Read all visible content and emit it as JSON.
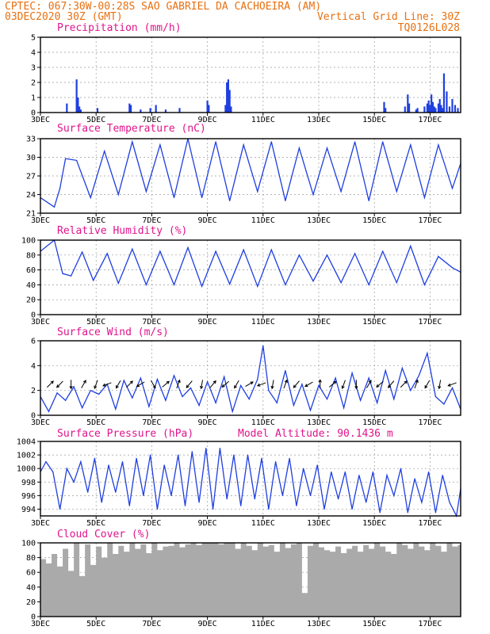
{
  "header": {
    "line1_left": "CPTEC:   067:30W-00:28S  SAO GABRIEL DA CACHOEIRA (AM)",
    "line2_left": "03DEC2020 30Z (GMT)",
    "line2_right": "Vertical Grid Line: 30Z",
    "line3_right": "TQ0126L028"
  },
  "colors": {
    "header": "#e87010",
    "panel_title": "#e0148c",
    "series": "#1f3fe0",
    "cloud_fill": "#aaaaaa"
  },
  "chart_data": [
    {
      "type": "bar",
      "title": "Precipitation (mm/h)",
      "ylim": [
        0,
        5
      ],
      "yticks": [
        "0",
        "1",
        "2",
        "3",
        "4",
        "5"
      ],
      "x_tick_labels": [
        "3DEC",
        "5DEC",
        "7DEC",
        "9DEC",
        "11DEC",
        "13DEC",
        "15DEC",
        "17DEC"
      ],
      "x_tick_days": [
        0,
        2,
        4,
        6,
        8,
        10,
        12,
        14
      ],
      "x_range_days": [
        0,
        15.1
      ],
      "grid": true,
      "x": [
        0.95,
        1.3,
        1.35,
        1.4,
        1.45,
        2.05,
        3.2,
        3.25,
        3.6,
        3.95,
        4.15,
        4.5,
        5.0,
        6.0,
        6.05,
        6.65,
        6.7,
        6.75,
        6.8,
        6.85,
        12.35,
        12.4,
        13.1,
        13.2,
        13.25,
        13.5,
        13.55,
        13.8,
        13.9,
        13.95,
        14.0,
        14.05,
        14.1,
        14.15,
        14.2,
        14.3,
        14.35,
        14.4,
        14.45,
        14.5,
        14.6,
        14.7,
        14.8,
        14.9,
        15.0
      ],
      "values": [
        0.6,
        2.2,
        1.0,
        0.4,
        0.2,
        0.3,
        0.6,
        0.5,
        0.2,
        0.3,
        0.5,
        0.2,
        0.3,
        0.8,
        0.5,
        0.5,
        2.0,
        2.2,
        1.5,
        0.4,
        0.7,
        0.3,
        0.4,
        1.2,
        0.6,
        0.2,
        0.3,
        0.4,
        0.6,
        0.8,
        0.5,
        1.2,
        0.7,
        0.4,
        0.3,
        0.6,
        0.9,
        0.5,
        0.3,
        2.6,
        1.4,
        0.4,
        0.9,
        0.5,
        0.3
      ]
    },
    {
      "type": "line",
      "title": "Surface Temperature (nC)",
      "ylim": [
        21,
        33
      ],
      "yticks": [
        "21",
        "24",
        "27",
        "30",
        "33"
      ],
      "x_tick_labels": [
        "3DEC",
        "5DEC",
        "7DEC",
        "9DEC",
        "11DEC",
        "13DEC",
        "15DEC",
        "17DEC"
      ],
      "x_tick_days": [
        0,
        2,
        4,
        6,
        8,
        10,
        12,
        14
      ],
      "x_range_days": [
        0,
        15.1
      ],
      "grid": true,
      "x": [
        0.0,
        0.5,
        0.7,
        0.9,
        1.3,
        1.8,
        2.3,
        2.8,
        3.3,
        3.8,
        4.3,
        4.8,
        5.3,
        5.8,
        6.3,
        6.8,
        7.3,
        7.8,
        8.3,
        8.8,
        9.3,
        9.8,
        10.3,
        10.8,
        11.3,
        11.8,
        12.3,
        12.8,
        13.3,
        13.8,
        14.3,
        14.8,
        15.1
      ],
      "values": [
        23.5,
        22.0,
        25.0,
        29.8,
        29.5,
        23.5,
        31.0,
        24.0,
        32.5,
        24.5,
        32.0,
        23.5,
        33.0,
        23.5,
        32.5,
        23.0,
        32.0,
        24.5,
        32.5,
        23.0,
        31.5,
        24.0,
        31.5,
        24.5,
        32.5,
        23.0,
        32.5,
        24.5,
        32.0,
        23.5,
        32.0,
        25.0,
        29.0
      ]
    },
    {
      "type": "line",
      "title": "Relative Humidity (%)",
      "ylim": [
        0,
        100
      ],
      "yticks": [
        "0",
        "20",
        "40",
        "60",
        "80",
        "100"
      ],
      "x_tick_labels": [
        "3DEC",
        "5DEC",
        "7DEC",
        "9DEC",
        "11DEC",
        "13DEC",
        "15DEC",
        "17DEC"
      ],
      "x_tick_days": [
        0,
        2,
        4,
        6,
        8,
        10,
        12,
        14
      ],
      "x_range_days": [
        0,
        15.1
      ],
      "grid": true,
      "x": [
        0.0,
        0.5,
        0.8,
        1.1,
        1.5,
        1.9,
        2.4,
        2.8,
        3.3,
        3.8,
        4.3,
        4.8,
        5.3,
        5.8,
        6.3,
        6.8,
        7.3,
        7.8,
        8.3,
        8.8,
        9.3,
        9.8,
        10.3,
        10.8,
        11.3,
        11.8,
        12.3,
        12.8,
        13.3,
        13.8,
        14.3,
        14.8,
        15.1
      ],
      "values": [
        85,
        100,
        55,
        52,
        84,
        46,
        82,
        42,
        88,
        40,
        85,
        40,
        90,
        38,
        85,
        41,
        87,
        38,
        87,
        40,
        80,
        45,
        80,
        43,
        82,
        40,
        85,
        43,
        92,
        40,
        78,
        63,
        57
      ]
    },
    {
      "type": "line",
      "title": "Surface Wind (m/s)",
      "ylim": [
        0,
        6
      ],
      "yticks": [
        "0",
        "2",
        "4",
        "6"
      ],
      "x_tick_labels": [
        "3DEC",
        "5DEC",
        "7DEC",
        "9DEC",
        "11DEC",
        "13DEC",
        "15DEC",
        "17DEC"
      ],
      "x_tick_days": [
        0,
        2,
        4,
        6,
        8,
        10,
        12,
        14
      ],
      "x_range_days": [
        0,
        15.1
      ],
      "grid": true,
      "x": [
        0.0,
        0.3,
        0.6,
        0.9,
        1.2,
        1.5,
        1.8,
        2.1,
        2.4,
        2.7,
        3.0,
        3.3,
        3.6,
        3.9,
        4.2,
        4.5,
        4.8,
        5.1,
        5.4,
        5.7,
        6.0,
        6.3,
        6.6,
        6.9,
        7.2,
        7.5,
        7.8,
        8.0,
        8.2,
        8.5,
        8.8,
        9.1,
        9.4,
        9.7,
        10.0,
        10.3,
        10.6,
        10.9,
        11.2,
        11.5,
        11.8,
        12.1,
        12.4,
        12.7,
        13.0,
        13.3,
        13.6,
        13.9,
        14.2,
        14.5,
        14.8,
        15.1
      ],
      "values": [
        1.5,
        0.3,
        1.8,
        1.2,
        2.3,
        0.6,
        2.0,
        1.7,
        2.5,
        0.5,
        2.8,
        1.4,
        3.0,
        0.7,
        2.9,
        1.2,
        3.2,
        1.5,
        2.2,
        0.8,
        2.7,
        1.0,
        3.1,
        0.3,
        2.4,
        1.3,
        2.9,
        5.6,
        2.0,
        1.0,
        3.6,
        0.8,
        2.5,
        0.4,
        2.4,
        1.3,
        3.0,
        0.6,
        3.4,
        1.2,
        3.0,
        1.0,
        3.6,
        1.3,
        3.8,
        2.0,
        3.2,
        5.0,
        1.5,
        0.9,
        2.2,
        0.5
      ]
    },
    {
      "type": "line",
      "title": "Surface Pressure (hPa)",
      "annotation": "Model Altitude: 90.1436  m",
      "ylim": [
        993,
        1004
      ],
      "yticks": [
        "994",
        "996",
        "998",
        "1000",
        "1002",
        "1004"
      ],
      "x_tick_labels": [
        "3DEC",
        "5DEC",
        "7DEC",
        "9DEC",
        "11DEC",
        "13DEC",
        "15DEC",
        "17DEC"
      ],
      "x_tick_days": [
        0,
        2,
        4,
        6,
        8,
        10,
        12,
        14
      ],
      "x_range_days": [
        0,
        15.1
      ],
      "grid": true,
      "x": [
        0.0,
        0.2,
        0.45,
        0.7,
        0.95,
        1.2,
        1.45,
        1.7,
        1.95,
        2.2,
        2.45,
        2.7,
        2.95,
        3.2,
        3.45,
        3.7,
        3.95,
        4.2,
        4.45,
        4.7,
        4.95,
        5.2,
        5.45,
        5.7,
        5.95,
        6.2,
        6.45,
        6.7,
        6.95,
        7.2,
        7.45,
        7.7,
        7.95,
        8.2,
        8.45,
        8.7,
        8.95,
        9.2,
        9.45,
        9.7,
        9.95,
        10.2,
        10.45,
        10.7,
        10.95,
        11.2,
        11.45,
        11.7,
        11.95,
        12.2,
        12.45,
        12.7,
        12.95,
        13.2,
        13.45,
        13.7,
        13.95,
        14.2,
        14.45,
        14.7,
        14.95,
        15.1
      ],
      "values": [
        999.5,
        1001.0,
        999.5,
        994.0,
        1000.0,
        998.0,
        1001.0,
        996.5,
        1001.5,
        995.0,
        1000.5,
        996.5,
        1001.0,
        994.5,
        1001.5,
        996.0,
        1002.0,
        994.0,
        1000.5,
        996.0,
        1002.0,
        994.5,
        1002.5,
        995.0,
        1003.0,
        994.0,
        1003.0,
        995.5,
        1002.0,
        994.5,
        1002.0,
        995.5,
        1001.5,
        994.0,
        1001.0,
        996.0,
        1001.5,
        994.5,
        1000.0,
        996.0,
        1000.5,
        994.0,
        999.5,
        995.5,
        999.5,
        994.0,
        999.0,
        995.0,
        999.5,
        993.5,
        999.0,
        996.0,
        1000.0,
        993.5,
        998.5,
        995.0,
        999.5,
        993.5,
        999.0,
        995.0,
        993.0,
        997.0
      ]
    },
    {
      "type": "area",
      "title": "Cloud Cover (%)",
      "ylim": [
        0,
        100
      ],
      "yticks": [
        "0",
        "20",
        "40",
        "60",
        "80",
        "100"
      ],
      "x_tick_labels": [
        "3DEC",
        "5DEC",
        "7DEC",
        "9DEC",
        "11DEC",
        "13DEC",
        "15DEC",
        "17DEC"
      ],
      "x_tick_days": [
        0,
        2,
        4,
        6,
        8,
        10,
        12,
        14
      ],
      "x_range_days": [
        0,
        15.1
      ],
      "grid": true,
      "x": [
        0.0,
        0.2,
        0.4,
        0.6,
        0.8,
        1.0,
        1.2,
        1.4,
        1.6,
        1.8,
        2.0,
        2.2,
        2.4,
        2.6,
        2.8,
        3.0,
        3.2,
        3.4,
        3.6,
        3.8,
        4.0,
        4.2,
        4.4,
        4.6,
        4.8,
        5.0,
        5.2,
        5.4,
        5.6,
        5.8,
        6.0,
        6.2,
        6.4,
        6.6,
        6.8,
        7.0,
        7.2,
        7.4,
        7.6,
        7.8,
        8.0,
        8.2,
        8.4,
        8.6,
        8.8,
        9.0,
        9.2,
        9.4,
        9.6,
        9.8,
        10.0,
        10.2,
        10.4,
        10.6,
        10.8,
        11.0,
        11.2,
        11.4,
        11.6,
        11.8,
        12.0,
        12.2,
        12.4,
        12.6,
        12.8,
        13.0,
        13.2,
        13.4,
        13.6,
        13.8,
        14.0,
        14.2,
        14.4,
        14.6,
        14.8,
        15.0
      ],
      "values": [
        78,
        72,
        85,
        68,
        92,
        62,
        100,
        55,
        98,
        70,
        95,
        80,
        100,
        85,
        96,
        88,
        100,
        92,
        98,
        86,
        100,
        90,
        95,
        96,
        100,
        94,
        98,
        100,
        97,
        100,
        100,
        100,
        98,
        100,
        100,
        92,
        100,
        96,
        90,
        100,
        95,
        97,
        88,
        100,
        93,
        98,
        100,
        32,
        96,
        100,
        94,
        90,
        88,
        95,
        86,
        92,
        96,
        88,
        97,
        92,
        100,
        95,
        88,
        85,
        100,
        97,
        92,
        100,
        95,
        90,
        100,
        96,
        88,
        100,
        95,
        97
      ]
    }
  ],
  "wind_barbs": {
    "x": [
      0.35,
      0.7,
      1.1,
      1.55,
      2.0,
      2.4,
      2.8,
      3.2,
      3.6,
      4.05,
      4.5,
      4.95,
      5.35,
      5.8,
      6.2,
      6.65,
      7.05,
      7.5,
      7.95,
      8.35,
      8.8,
      9.2,
      9.65,
      10.05,
      10.5,
      10.9,
      11.35,
      11.8,
      12.2,
      12.6,
      13.05,
      13.5,
      13.9,
      14.35,
      14.8
    ],
    "direction_deg": [
      45,
      225,
      270,
      60,
      250,
      200,
      240,
      45,
      210,
      300,
      40,
      70,
      230,
      260,
      50,
      220,
      240,
      30,
      200,
      260,
      70,
      230,
      210,
      90,
      40,
      250,
      270,
      60,
      220,
      230,
      45,
      70,
      240,
      260,
      200
    ]
  }
}
